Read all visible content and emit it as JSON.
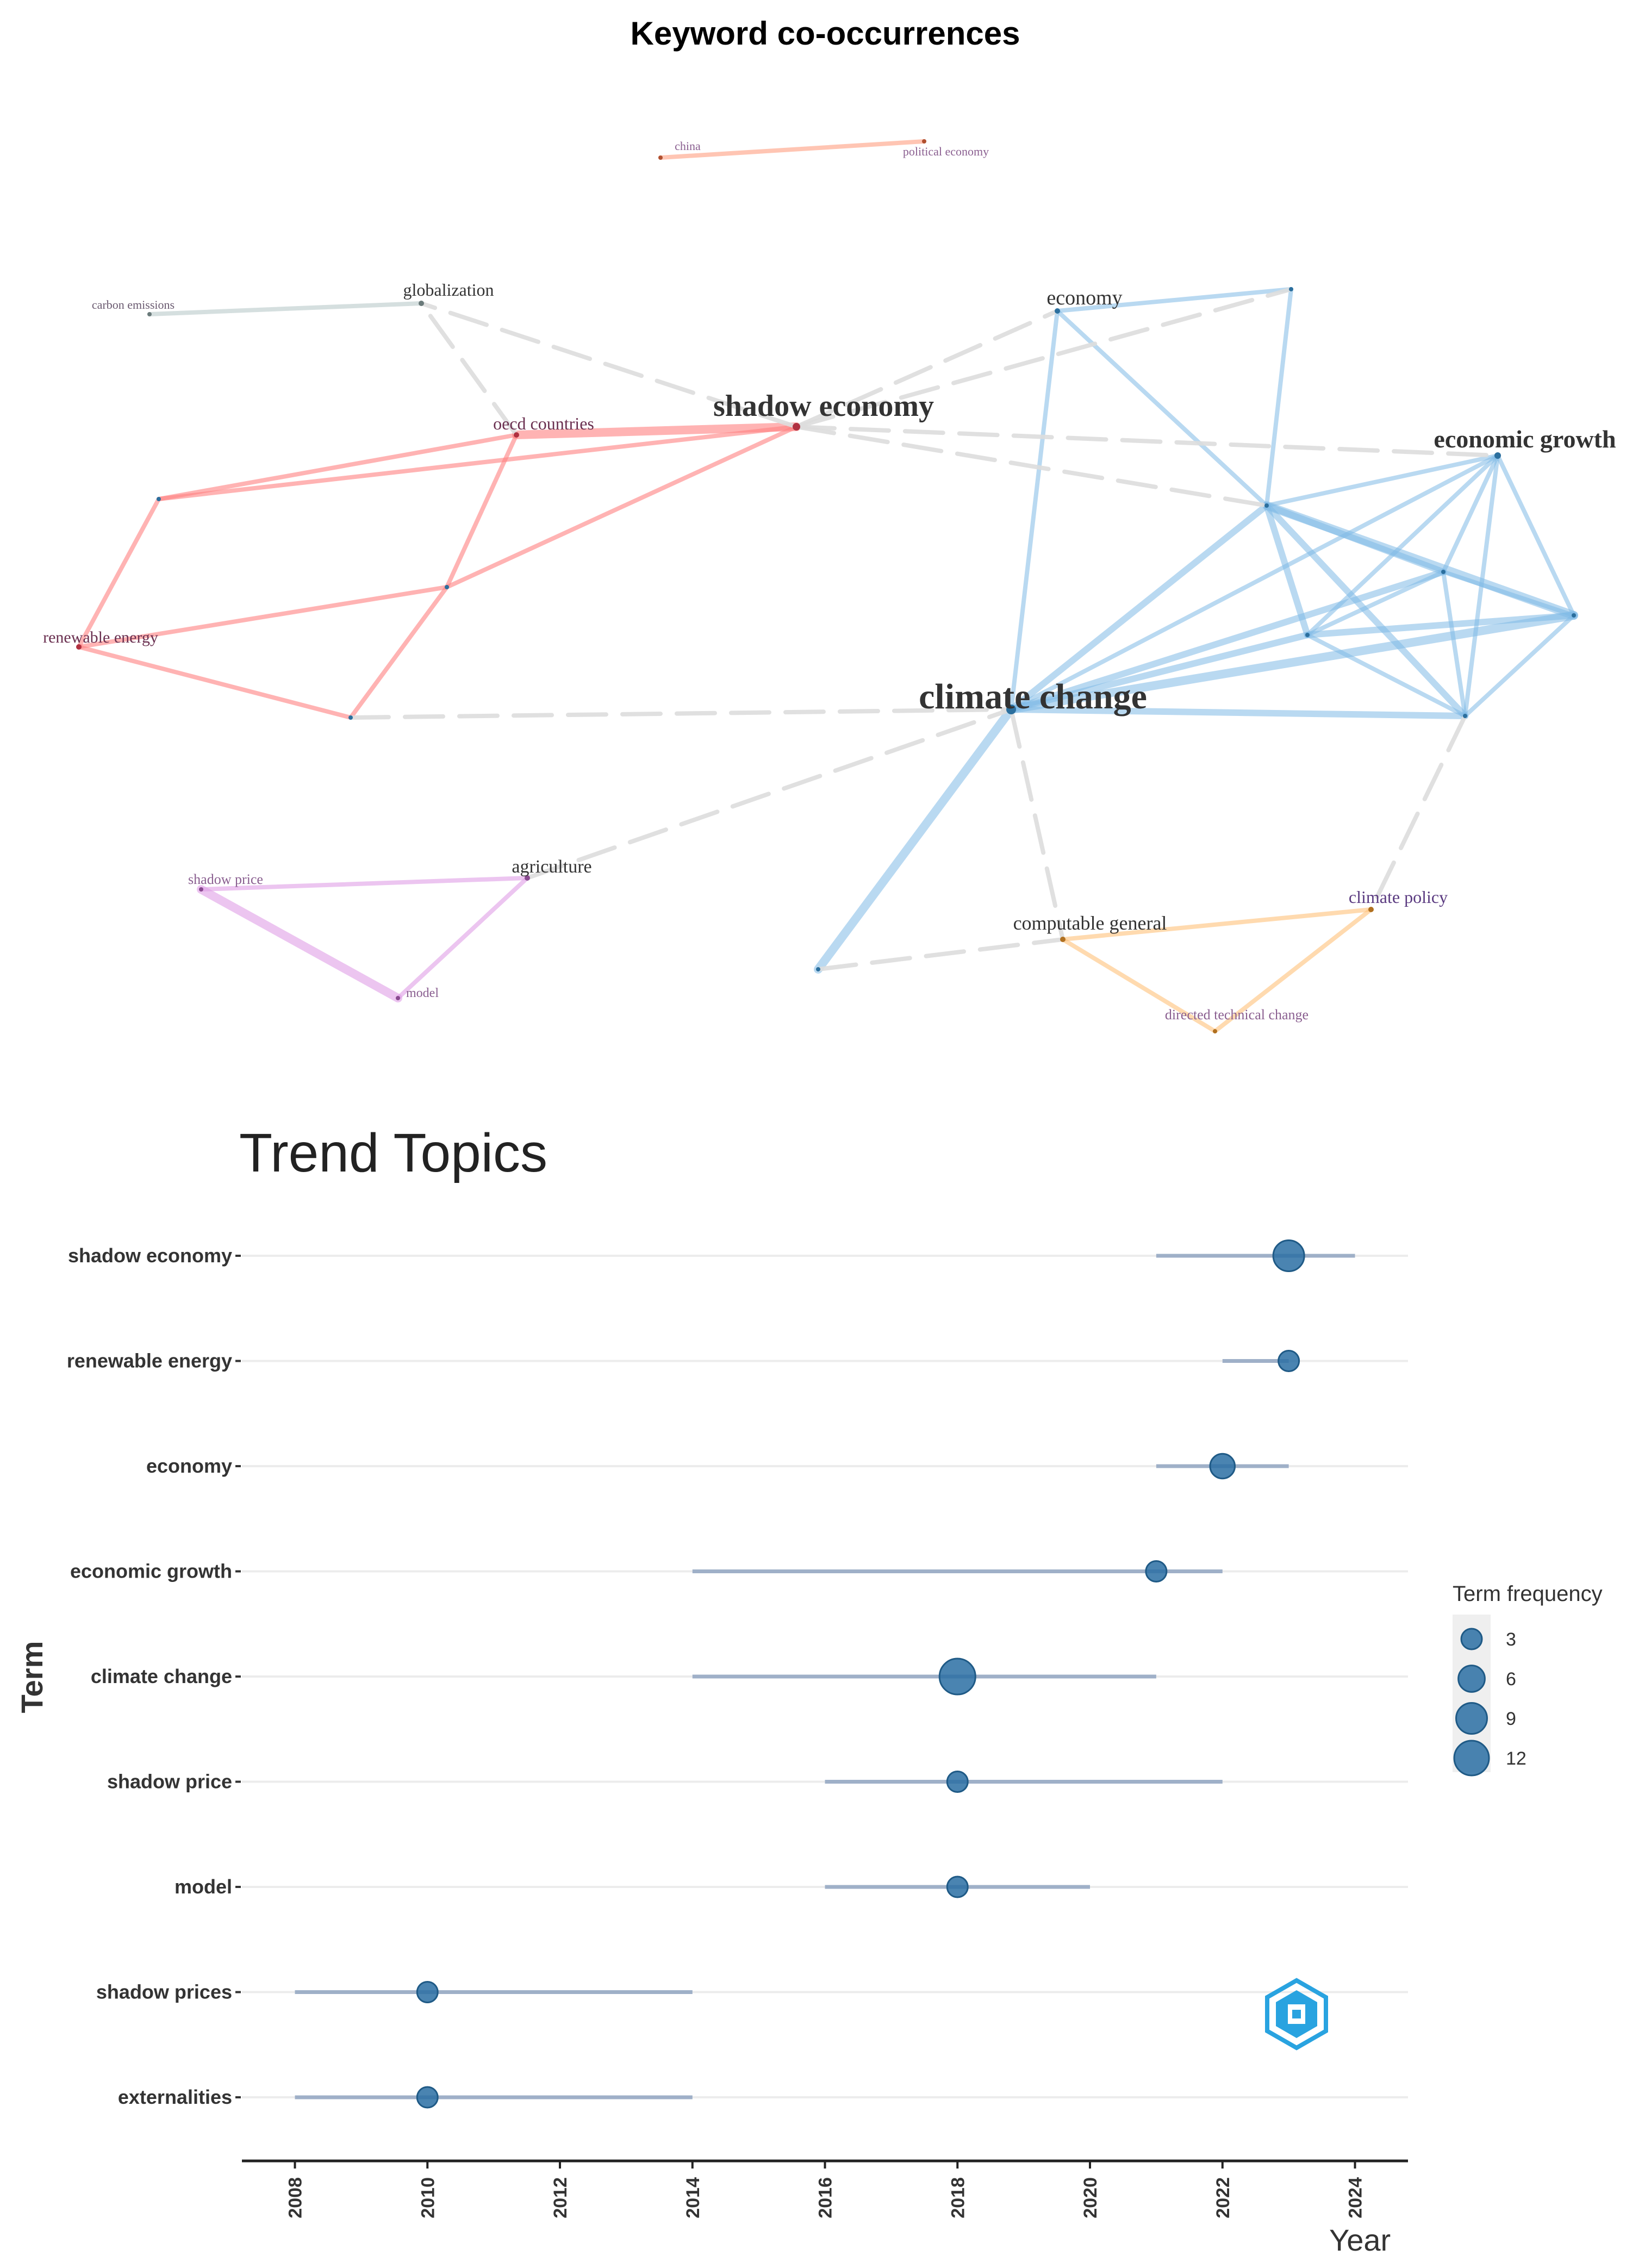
{
  "network": {
    "title": "Keyword co-occurrences",
    "nodes": [
      {
        "id": "climate_change",
        "label": "climate change",
        "cluster": "blue",
        "size": "xl"
      },
      {
        "id": "shadow_economy",
        "label": "shadow economy",
        "cluster": "red",
        "size": "l"
      },
      {
        "id": "economic_growth",
        "label": "economic growth",
        "cluster": "blue",
        "size": "m"
      },
      {
        "id": "economy",
        "label": "economy",
        "cluster": "blue",
        "size": "s"
      },
      {
        "id": "oecd",
        "label": "oecd countries",
        "cluster": "red",
        "size": "s"
      },
      {
        "id": "renewable_energy",
        "label": "renewable energy",
        "cluster": "red",
        "size": "s"
      },
      {
        "id": "globalization",
        "label": "globalization",
        "cluster": "grey",
        "size": "s"
      },
      {
        "id": "carbon_emissions",
        "label": "carbon emissions",
        "cluster": "grey",
        "size": "xs"
      },
      {
        "id": "china",
        "label": "china",
        "cluster": "orange",
        "size": "xs"
      },
      {
        "id": "political_economy",
        "label": "political economy",
        "cluster": "orange",
        "size": "xs"
      },
      {
        "id": "agriculture",
        "label": "agriculture",
        "cluster": "purple",
        "size": "s"
      },
      {
        "id": "shadow_price",
        "label": "shadow price",
        "cluster": "purple",
        "size": "xs"
      },
      {
        "id": "model",
        "label": "model",
        "cluster": "purple",
        "size": "xs"
      },
      {
        "id": "computable_general",
        "label": "computable general",
        "cluster": "yellow",
        "size": "s"
      },
      {
        "id": "climate_policy",
        "label": "climate policy",
        "cluster": "yellow",
        "size": "s"
      },
      {
        "id": "directed_technical_change",
        "label": "directed technical change",
        "cluster": "yellow",
        "size": "xs"
      },
      {
        "id": "r1"
      },
      {
        "id": "r2"
      },
      {
        "id": "r3"
      },
      {
        "id": "b1"
      },
      {
        "id": "b2"
      },
      {
        "id": "b3"
      },
      {
        "id": "b4"
      },
      {
        "id": "b5"
      },
      {
        "id": "b6"
      },
      {
        "id": "b7"
      }
    ],
    "edges": [
      [
        "china",
        "political_economy",
        "orange",
        2
      ],
      [
        "carbon_emissions",
        "globalization",
        "grey",
        2
      ],
      [
        "shadow_economy",
        "oecd",
        "red",
        4
      ],
      [
        "shadow_economy",
        "r1",
        "red",
        2
      ],
      [
        "oecd",
        "r1",
        "red",
        2
      ],
      [
        "r1",
        "renewable_energy",
        "red",
        2
      ],
      [
        "shadow_economy",
        "r2",
        "red",
        2
      ],
      [
        "oecd",
        "r2",
        "red",
        2
      ],
      [
        "r2",
        "renewable_energy",
        "red",
        2
      ],
      [
        "r2",
        "r3",
        "red",
        2
      ],
      [
        "renewable_energy",
        "r3",
        "red",
        2
      ],
      [
        "shadow_price",
        "agriculture",
        "purple",
        2
      ],
      [
        "shadow_price",
        "model",
        "purple",
        4
      ],
      [
        "agriculture",
        "model",
        "purple",
        2
      ],
      [
        "computable_general",
        "climate_policy",
        "yellow",
        2
      ],
      [
        "computable_general",
        "directed_technical_change",
        "yellow",
        2
      ],
      [
        "climate_policy",
        "directed_technical_change",
        "yellow",
        2
      ],
      [
        "climate_change",
        "economy",
        "blue",
        2
      ],
      [
        "climate_change",
        "b1",
        "blue",
        3
      ],
      [
        "climate_change",
        "b3",
        "blue",
        3
      ],
      [
        "climate_change",
        "b4",
        "blue",
        3
      ],
      [
        "climate_change",
        "b5",
        "blue",
        4
      ],
      [
        "climate_change",
        "b6",
        "blue",
        3
      ],
      [
        "climate_change",
        "economic_growth",
        "blue",
        2
      ],
      [
        "climate_change",
        "b7",
        "blue",
        4
      ],
      [
        "economy",
        "b1",
        "blue",
        2
      ],
      [
        "economy",
        "b2",
        "blue",
        2
      ],
      [
        "b1",
        "b2",
        "blue",
        2
      ],
      [
        "b1",
        "economic_growth",
        "blue",
        2
      ],
      [
        "b1",
        "b3",
        "blue",
        3
      ],
      [
        "b1",
        "b4",
        "blue",
        3
      ],
      [
        "b1",
        "b5",
        "blue",
        4
      ],
      [
        "b1",
        "b6",
        "blue",
        3
      ],
      [
        "economic_growth",
        "b3",
        "blue",
        2
      ],
      [
        "economic_growth",
        "b4",
        "blue",
        2
      ],
      [
        "economic_growth",
        "b5",
        "blue",
        2
      ],
      [
        "economic_growth",
        "b6",
        "blue",
        2
      ],
      [
        "b3",
        "b4",
        "blue",
        2
      ],
      [
        "b3",
        "b5",
        "blue",
        2
      ],
      [
        "b3",
        "b6",
        "blue",
        2
      ],
      [
        "b4",
        "b5",
        "blue",
        3
      ],
      [
        "b4",
        "b6",
        "blue",
        2
      ],
      [
        "b5",
        "b6",
        "blue",
        2
      ],
      [
        "shadow_economy",
        "globalization",
        "dash",
        2
      ],
      [
        "shadow_economy",
        "economy",
        "dash",
        2
      ],
      [
        "shadow_economy",
        "b2",
        "dash",
        2
      ],
      [
        "shadow_economy",
        "economic_growth",
        "dash",
        2
      ],
      [
        "shadow_economy",
        "b1",
        "dash",
        2
      ],
      [
        "oecd",
        "globalization",
        "dash",
        2
      ],
      [
        "r3",
        "climate_change",
        "dash",
        2
      ],
      [
        "agriculture",
        "climate_change",
        "dash",
        2
      ],
      [
        "b7",
        "computable_general",
        "dash",
        2
      ],
      [
        "climate_change",
        "computable_general",
        "dash",
        2
      ],
      [
        "b6",
        "climate_policy",
        "dash",
        2
      ]
    ]
  },
  "chart_data": {
    "type": "dot-range",
    "title": "Trend Topics",
    "xlabel": "Year",
    "ylabel": "Term",
    "xlim": [
      2007.2,
      2024.8
    ],
    "xticks": [
      2008,
      2010,
      2012,
      2014,
      2016,
      2018,
      2020,
      2022,
      2024
    ],
    "legend": {
      "title": "Term frequency",
      "entries": [
        {
          "label": "3",
          "value": 3
        },
        {
          "label": "6",
          "value": 6
        },
        {
          "label": "9",
          "value": 9
        },
        {
          "label": "12",
          "value": 12
        }
      ]
    },
    "terms": [
      {
        "term": "shadow economy",
        "start": 2021,
        "median": 2023,
        "end": 2024,
        "freq": 9
      },
      {
        "term": "renewable energy",
        "start": 2022,
        "median": 2023,
        "end": 2023,
        "freq": 3
      },
      {
        "term": "economy",
        "start": 2021,
        "median": 2022,
        "end": 2023,
        "freq": 5
      },
      {
        "term": "economic growth",
        "start": 2014,
        "median": 2021,
        "end": 2022,
        "freq": 3
      },
      {
        "term": "climate change",
        "start": 2014,
        "median": 2018,
        "end": 2021,
        "freq": 13
      },
      {
        "term": "shadow price",
        "start": 2016,
        "median": 2018,
        "end": 2022,
        "freq": 3
      },
      {
        "term": "model",
        "start": 2016,
        "median": 2018,
        "end": 2020,
        "freq": 3
      },
      {
        "term": "shadow prices",
        "start": 2008,
        "median": 2010,
        "end": 2014,
        "freq": 3
      },
      {
        "term": "externalities",
        "start": 2008,
        "median": 2010,
        "end": 2014,
        "freq": 3
      }
    ]
  },
  "colors": {
    "blue": "#7fb9e6",
    "red": "#ff8080",
    "purple": "#df9ee6",
    "yellow": "#ffc27a",
    "orange": "#ff9f80",
    "grey": "#b9c9c9",
    "dash": "#dddddd",
    "dot": "#2a6fa3",
    "range": "#9fb0c8"
  }
}
